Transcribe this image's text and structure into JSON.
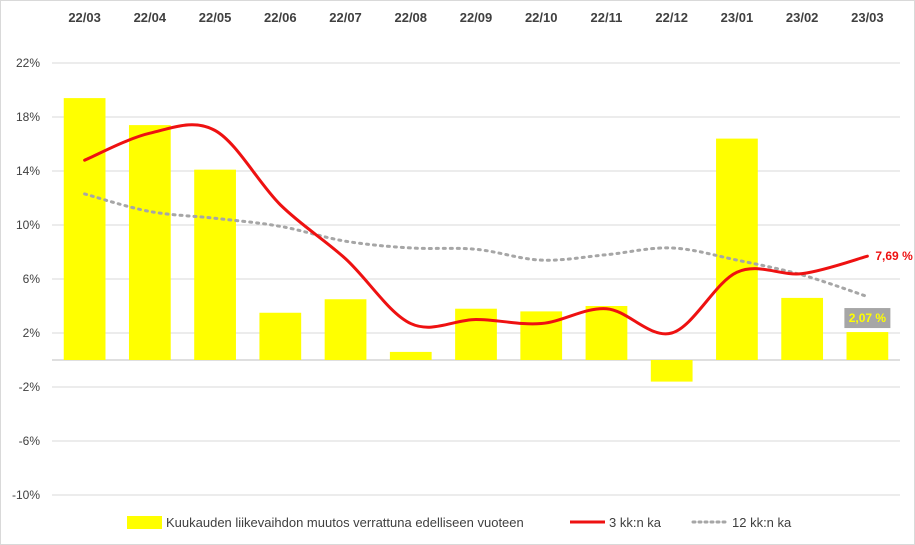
{
  "chart_data": {
    "type": "bar",
    "categories": [
      "22/03",
      "22/04",
      "22/05",
      "22/06",
      "22/07",
      "22/08",
      "22/09",
      "22/10",
      "22/11",
      "22/12",
      "23/01",
      "23/02",
      "23/03"
    ],
    "y_ticks": [
      "22%",
      "18%",
      "14%",
      "10%",
      "6%",
      "2%",
      "-2%",
      "-6%",
      "-10%"
    ],
    "y_tick_values": [
      22,
      18,
      14,
      10,
      6,
      2,
      -2,
      -6,
      -10
    ],
    "ylim": [
      -10,
      22
    ],
    "grid": true,
    "legend_position": "bottom",
    "series": [
      {
        "name": "Kuukauden liikevaihdon muutos verrattuna edelliseen vuoteen",
        "type": "bar",
        "color": "#ffff00",
        "values": [
          19.4,
          17.4,
          14.1,
          3.5,
          4.5,
          0.6,
          3.8,
          3.6,
          4.0,
          -1.6,
          16.4,
          4.6,
          2.07
        ]
      },
      {
        "name": "3 kk:n ka",
        "type": "line",
        "style": "smooth",
        "color": "#ee1111",
        "values": [
          14.8,
          16.8,
          17.0,
          11.5,
          7.5,
          2.7,
          3.0,
          2.7,
          3.8,
          2.0,
          6.5,
          6.4,
          7.69
        ]
      },
      {
        "name": "12 kk:n ka",
        "type": "line",
        "style": "dotted",
        "color": "#a6a6a6",
        "values": [
          12.3,
          11.0,
          10.5,
          9.9,
          8.8,
          8.3,
          8.2,
          7.4,
          7.8,
          8.3,
          7.4,
          6.3,
          4.7
        ]
      }
    ],
    "annotations": {
      "line_last_label": "7,69 %",
      "bar_last_label": "2,07 %"
    }
  },
  "colors": {
    "bar": "#ffff00",
    "line3": "#ee1111",
    "line12": "#a6a6a6",
    "grid": "#d9d9d9",
    "callout_box": "#a6a6a6"
  }
}
